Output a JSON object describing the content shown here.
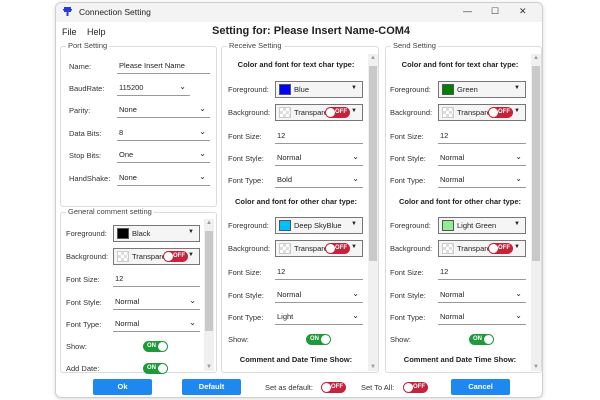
{
  "window": {
    "title": "Connection Setting",
    "minimize": "—",
    "maximize": "☐",
    "close": "✕"
  },
  "menu": [
    "File",
    "Help"
  ],
  "heading": "Setting for: Please Insert Name-COM4",
  "port": {
    "title": "Port Setting",
    "rows": [
      {
        "label": "Name:",
        "value": "Please Insert Name",
        "type": "text"
      },
      {
        "label": "BaudRate:",
        "value": "115200",
        "type": "dropdown-short"
      },
      {
        "label": "Parity:",
        "value": "None",
        "type": "dropdown"
      },
      {
        "label": "Data Bits:",
        "value": "8",
        "type": "dropdown"
      },
      {
        "label": "Stop Bits:",
        "value": "One",
        "type": "dropdown"
      },
      {
        "label": "HandShake:",
        "value": "None",
        "type": "dropdown"
      }
    ]
  },
  "general": {
    "title": "General comment setting",
    "rows": [
      {
        "label": "Foreground:",
        "type": "color",
        "value": "Black",
        "color": "#000000"
      },
      {
        "label": "Background:",
        "type": "colorbg",
        "value": "Transpare",
        "toggle": "OFF"
      },
      {
        "label": "Font Size:",
        "type": "text",
        "value": "12"
      },
      {
        "label": "Font Style:",
        "type": "dropdown",
        "value": "Normal"
      },
      {
        "label": "Font Type:",
        "type": "dropdown",
        "value": "Normal"
      },
      {
        "label": "Show:",
        "type": "toggle",
        "value": "ON"
      },
      {
        "label": "Add Date:",
        "type": "toggle",
        "value": "ON"
      }
    ]
  },
  "receive": {
    "title": "Receive Setting",
    "rows": [
      {
        "type": "header",
        "value": "Color and font for text char type:"
      },
      {
        "label": "Foreground:",
        "type": "color",
        "value": "Blue",
        "color": "#0000ff"
      },
      {
        "label": "Background:",
        "type": "colorbg",
        "value": "Transpare",
        "toggle": "OFF"
      },
      {
        "label": "Font Size:",
        "type": "text",
        "value": "12"
      },
      {
        "label": "Font Style:",
        "type": "dropdown",
        "value": "Normal"
      },
      {
        "label": "Font Type:",
        "type": "dropdown",
        "value": "Bold"
      },
      {
        "type": "header",
        "value": "Color and font for other char type:"
      },
      {
        "label": "Foreground:",
        "type": "color",
        "value": "Deep SkyBlue",
        "color": "#00bfff"
      },
      {
        "label": "Background:",
        "type": "colorbg",
        "value": "Transpare",
        "toggle": "OFF"
      },
      {
        "label": "Font Size:",
        "type": "text",
        "value": "12"
      },
      {
        "label": "Font Style:",
        "type": "dropdown",
        "value": "Normal"
      },
      {
        "label": "Font Type:",
        "type": "dropdown",
        "value": "Light"
      },
      {
        "label": "Show:",
        "type": "toggle",
        "value": "ON"
      },
      {
        "type": "header",
        "value": "Comment and Date Time Show:"
      }
    ]
  },
  "send": {
    "title": "Send Setting",
    "rows": [
      {
        "type": "header",
        "value": "Color and font for text char type:"
      },
      {
        "label": "Foreground:",
        "type": "color",
        "value": "Green",
        "color": "#008000"
      },
      {
        "label": "Background:",
        "type": "colorbg",
        "value": "Transpare",
        "toggle": "OFF"
      },
      {
        "label": "Font Size:",
        "type": "text",
        "value": "12"
      },
      {
        "label": "Font Style:",
        "type": "dropdown",
        "value": "Normal"
      },
      {
        "label": "Font Type:",
        "type": "dropdown",
        "value": "Normal"
      },
      {
        "type": "header",
        "value": "Color and font for other char type:"
      },
      {
        "label": "Foreground:",
        "type": "color",
        "value": "Light Green",
        "color": "#90ee90"
      },
      {
        "label": "Background:",
        "type": "colorbg",
        "value": "Transpare",
        "toggle": "OFF"
      },
      {
        "label": "Font Size:",
        "type": "text",
        "value": "12"
      },
      {
        "label": "Font Style:",
        "type": "dropdown",
        "value": "Normal"
      },
      {
        "label": "Font Type:",
        "type": "dropdown",
        "value": "Normal"
      },
      {
        "label": "Show:",
        "type": "toggle",
        "value": "ON"
      },
      {
        "type": "header",
        "value": "Comment and Date Time Show:"
      }
    ]
  },
  "footer": {
    "ok": "Ok",
    "default": "Default",
    "set_default_label": "Set as default:",
    "set_default": "OFF",
    "set_all_label": "Set To All:",
    "set_all": "OFF",
    "cancel": "Cancel"
  }
}
